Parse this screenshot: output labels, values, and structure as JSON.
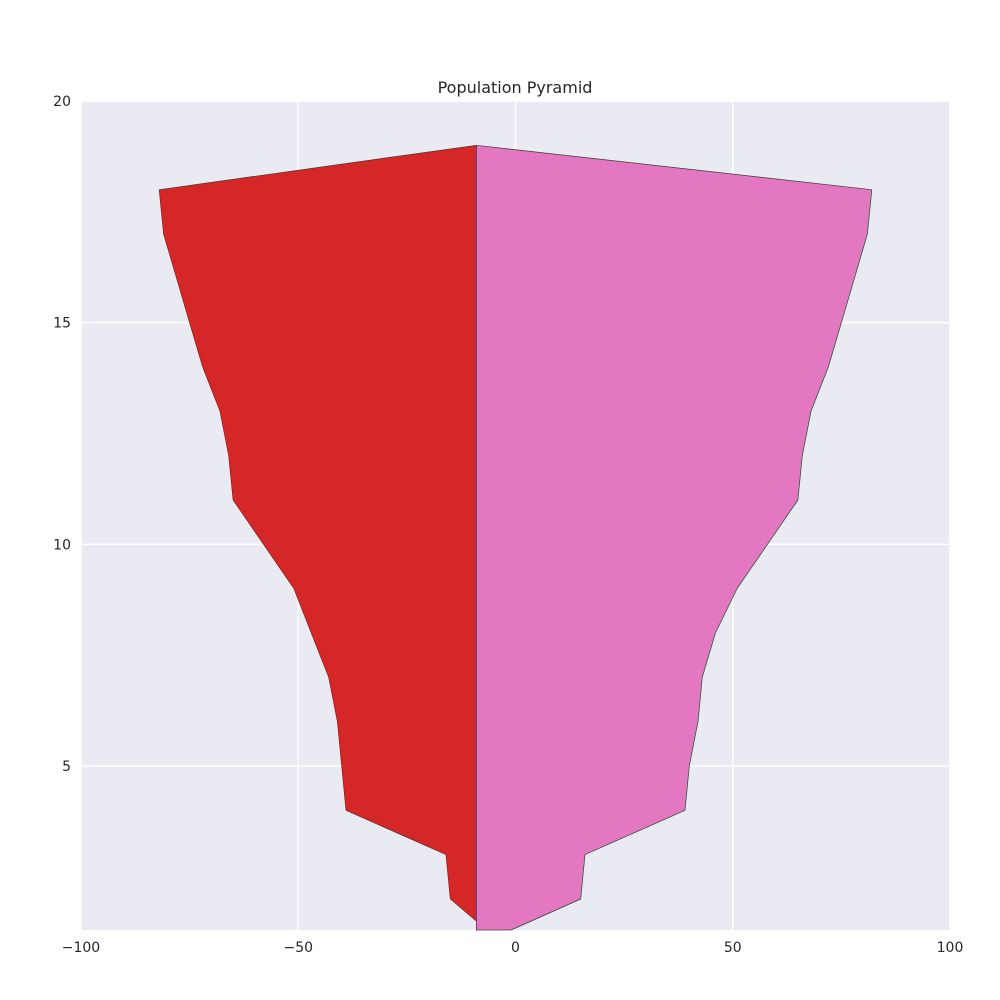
{
  "chart_data": {
    "type": "area",
    "title": "Population Pyramid",
    "xlabel": "",
    "ylabel": "",
    "xlim": [
      -100,
      100
    ],
    "ylim": [
      1.3,
      20
    ],
    "xticks": [
      -100,
      -50,
      0,
      50,
      100
    ],
    "xtick_labels": [
      "−100",
      "−50",
      "0",
      "50",
      "100"
    ],
    "yticks": [
      5,
      10,
      15,
      20
    ],
    "ytick_labels": [
      "5",
      "10",
      "15",
      "20"
    ],
    "grid": true,
    "legend": "none",
    "background": "#eaeaf2",
    "series": [
      {
        "side": "left",
        "color": "#d62728",
        "y": [
          1.5,
          2,
          3,
          4,
          5,
          6,
          7,
          8,
          9,
          10,
          11,
          12,
          13,
          14,
          15,
          16,
          17,
          18,
          19
        ],
        "values": [
          -9,
          -15,
          -16,
          -39,
          -40,
          -41,
          -43,
          -47,
          -51,
          -58,
          -65,
          -66,
          -68,
          -72,
          -75,
          -78,
          -81,
          -82,
          -9
        ]
      },
      {
        "side": "right",
        "color": "#e377c2",
        "y": [
          1.3,
          2,
          3,
          4,
          5,
          6,
          7,
          8,
          9,
          10,
          11,
          12,
          13,
          14,
          15,
          16,
          17,
          18,
          19
        ],
        "values": [
          -1,
          15,
          16,
          39,
          40,
          42,
          43,
          46,
          51,
          58,
          65,
          66,
          68,
          72,
          75,
          78,
          81,
          82,
          -9
        ]
      }
    ],
    "baseline_x": -9
  }
}
